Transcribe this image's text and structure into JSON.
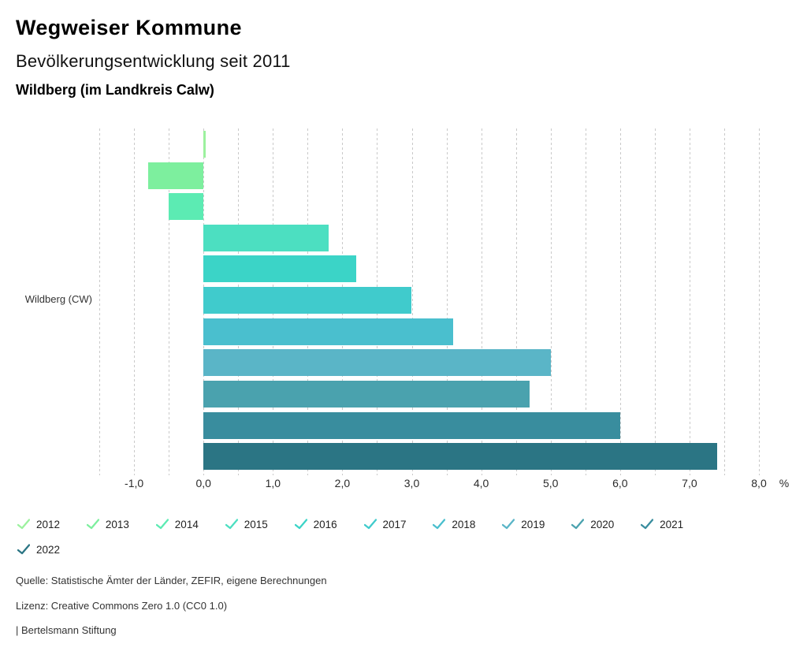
{
  "header": {
    "title": "Wegweiser Kommune",
    "subtitle": "Bevölkerungsentwicklung seit 2011",
    "region": "Wildberg (im Landkreis Calw)"
  },
  "chart_data": {
    "type": "bar",
    "orientation": "horizontal",
    "title": "Bevölkerungsentwicklung seit 2011",
    "group_label": "Wildberg (CW)",
    "unit": "%",
    "series": [
      {
        "name": "2012",
        "value": 0.0,
        "color": "#9cf19e"
      },
      {
        "name": "2013",
        "value": -0.8,
        "color": "#7def9e"
      },
      {
        "name": "2014",
        "value": -0.5,
        "color": "#5cebb3"
      },
      {
        "name": "2015",
        "value": 1.8,
        "color": "#4cdfc1"
      },
      {
        "name": "2016",
        "value": 2.2,
        "color": "#3bd4c7"
      },
      {
        "name": "2017",
        "value": 3.0,
        "color": "#40cbcc"
      },
      {
        "name": "2018",
        "value": 3.6,
        "color": "#4abfce"
      },
      {
        "name": "2019",
        "value": 5.0,
        "color": "#5ab5c7"
      },
      {
        "name": "2020",
        "value": 4.7,
        "color": "#4aa2ae"
      },
      {
        "name": "2021",
        "value": 6.0,
        "color": "#398d9e"
      },
      {
        "name": "2022",
        "value": 7.4,
        "color": "#2b7584"
      }
    ],
    "x_axis": {
      "min": -1.5,
      "max": 8.0,
      "grid_step": 0.5,
      "tick_values": [
        -1,
        0,
        1,
        2,
        3,
        4,
        5,
        6,
        7,
        8
      ],
      "tick_labels": [
        "-1,0",
        "0,0",
        "1,0",
        "2,0",
        "3,0",
        "4,0",
        "5,0",
        "6,0",
        "7,0",
        "8,0"
      ],
      "unit_label": "%"
    },
    "grid": true,
    "legend_position": "bottom"
  },
  "footer": {
    "source": "Quelle: Statistische Ämter der Länder, ZEFIR, eigene Berechnungen",
    "license": "Lizenz: Creative Commons Zero 1.0 (CC0 1.0)",
    "attribution": "| Bertelsmann Stiftung"
  }
}
